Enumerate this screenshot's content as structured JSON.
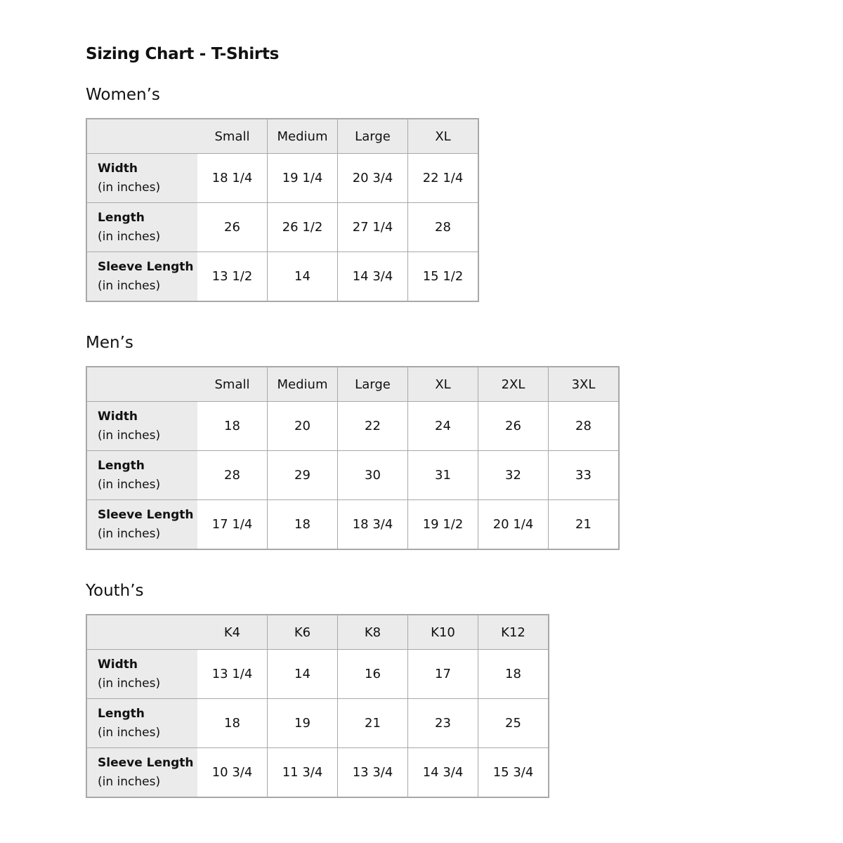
{
  "title": "Sizing Chart - T-Shirts",
  "unit_label": "(in inches)",
  "sections": [
    {
      "heading": "Women’s",
      "sizes": [
        "Small",
        "Medium",
        "Large",
        "XL"
      ],
      "rows": [
        {
          "label": "Width",
          "values": [
            "18 1/4",
            "19 1/4",
            "20 3/4",
            "22 1/4"
          ]
        },
        {
          "label": "Length",
          "values": [
            "26",
            "26 1/2",
            "27 1/4",
            "28"
          ]
        },
        {
          "label": "Sleeve Length",
          "values": [
            "13 1/2",
            "14",
            "14 3/4",
            "15 1/2"
          ]
        }
      ]
    },
    {
      "heading": "Men’s",
      "sizes": [
        "Small",
        "Medium",
        "Large",
        "XL",
        "2XL",
        "3XL"
      ],
      "rows": [
        {
          "label": "Width",
          "values": [
            "18",
            "20",
            "22",
            "24",
            "26",
            "28"
          ]
        },
        {
          "label": "Length",
          "values": [
            "28",
            "29",
            "30",
            "31",
            "32",
            "33"
          ]
        },
        {
          "label": "Sleeve Length",
          "values": [
            "17 1/4",
            "18",
            "18 3/4",
            "19 1/2",
            "20 1/4",
            "21"
          ]
        }
      ]
    },
    {
      "heading": "Youth’s",
      "sizes": [
        "K4",
        "K6",
        "K8",
        "K10",
        "K12"
      ],
      "rows": [
        {
          "label": "Width",
          "values": [
            "13 1/4",
            "14",
            "16",
            "17",
            "18"
          ]
        },
        {
          "label": "Length",
          "values": [
            "18",
            "19",
            "21",
            "23",
            "25"
          ]
        },
        {
          "label": "Sleeve Length",
          "values": [
            "10 3/4",
            "11 3/4",
            "13 3/4",
            "14 3/4",
            "15 3/4"
          ]
        }
      ]
    }
  ]
}
